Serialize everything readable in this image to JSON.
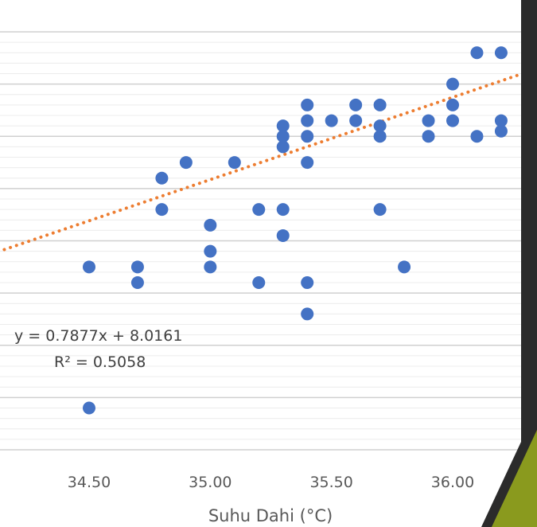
{
  "chart_data": {
    "type": "scatter",
    "xlabel": "Suhu Dahi (°C)",
    "ylabel": "",
    "title": "",
    "x_ticks": [
      "34.50",
      "35.00",
      "35.50",
      "36.00"
    ],
    "xlim": [
      34.15,
      36.5
    ],
    "grid": true,
    "legend": "none",
    "trendline": {
      "style": "dotted",
      "slope": 0.7877,
      "intercept": 8.0161,
      "color": "#ED7D31",
      "equation_label": "y = 0.7877x + 8.0161",
      "r2_label": "R² = 0.5058"
    },
    "point_color": "#4472C4",
    "points": [
      {
        "x": 34.5,
        "y": 34.75
      },
      {
        "x": 34.5,
        "y": 33.4
      },
      {
        "x": 34.7,
        "y": 34.75
      },
      {
        "x": 34.7,
        "y": 34.6
      },
      {
        "x": 34.8,
        "y": 35.6
      },
      {
        "x": 34.8,
        "y": 35.3
      },
      {
        "x": 34.9,
        "y": 35.75
      },
      {
        "x": 35.0,
        "y": 35.15
      },
      {
        "x": 35.0,
        "y": 34.9
      },
      {
        "x": 35.0,
        "y": 34.75
      },
      {
        "x": 35.1,
        "y": 35.75
      },
      {
        "x": 35.2,
        "y": 35.3
      },
      {
        "x": 35.2,
        "y": 34.6
      },
      {
        "x": 35.3,
        "y": 36.1
      },
      {
        "x": 35.3,
        "y": 36.0
      },
      {
        "x": 35.3,
        "y": 35.9
      },
      {
        "x": 35.3,
        "y": 35.3
      },
      {
        "x": 35.3,
        "y": 35.05
      },
      {
        "x": 35.4,
        "y": 36.3
      },
      {
        "x": 35.4,
        "y": 36.15
      },
      {
        "x": 35.4,
        "y": 36.0
      },
      {
        "x": 35.4,
        "y": 35.75
      },
      {
        "x": 35.4,
        "y": 34.6
      },
      {
        "x": 35.4,
        "y": 34.3
      },
      {
        "x": 35.5,
        "y": 36.15
      },
      {
        "x": 35.6,
        "y": 36.3
      },
      {
        "x": 35.6,
        "y": 36.15
      },
      {
        "x": 35.7,
        "y": 36.3
      },
      {
        "x": 35.7,
        "y": 36.1
      },
      {
        "x": 35.7,
        "y": 36.0
      },
      {
        "x": 35.7,
        "y": 35.3
      },
      {
        "x": 35.8,
        "y": 34.75
      },
      {
        "x": 35.9,
        "y": 36.15
      },
      {
        "x": 35.9,
        "y": 36.0
      },
      {
        "x": 36.0,
        "y": 36.5
      },
      {
        "x": 36.0,
        "y": 36.3
      },
      {
        "x": 36.0,
        "y": 36.15
      },
      {
        "x": 36.1,
        "y": 36.8
      },
      {
        "x": 36.1,
        "y": 36.0
      },
      {
        "x": 36.2,
        "y": 36.8
      },
      {
        "x": 36.2,
        "y": 36.15
      },
      {
        "x": 36.2,
        "y": 36.05
      }
    ],
    "decor_colors": {
      "accent_olive": "#8A9A1E",
      "accent_dark": "#2B2B2B"
    }
  }
}
